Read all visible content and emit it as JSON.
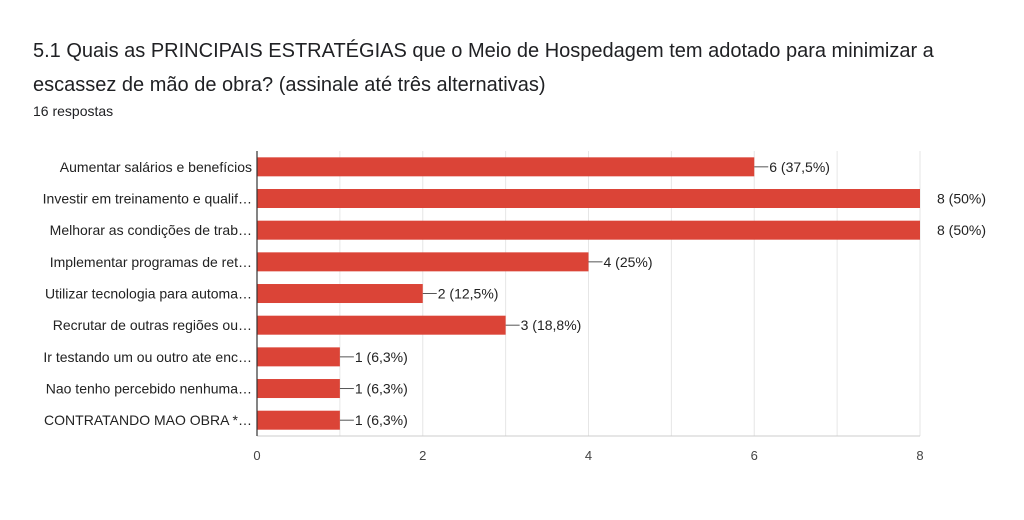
{
  "title": "5.1 Quais as PRINCIPAIS ESTRATÉGIAS que o Meio de Hospedagem tem adotado para minimizar a escassez de mão de obra?  (assinale até três alternativas)",
  "subtitle": "16 respostas",
  "chart_data": {
    "type": "bar",
    "orientation": "horizontal",
    "categories": [
      "Aumentar salários e benefícios",
      "Investir em treinamento e qualif…",
      "Melhorar as condições de trab…",
      "Implementar programas de ret…",
      "Utilizar tecnologia para automa…",
      "Recrutar de outras regiões ou…",
      "Ir testando um ou outro ate enc…",
      "Nao tenho percebido nenhuma…",
      "CONTRATANDO MAO OBRA *…"
    ],
    "values": [
      6,
      8,
      8,
      4,
      2,
      3,
      1,
      1,
      1
    ],
    "labels": [
      "6 (37,5%)",
      "8 (50%)",
      "8 (50%)",
      "4 (25%)",
      "2 (12,5%)",
      "3 (18,8%)",
      "1 (6,3%)",
      "1 (6,3%)",
      "1 (6,3%)"
    ],
    "xlim": [
      0,
      8
    ],
    "xticks": [
      0,
      2,
      4,
      6,
      8
    ],
    "bar_color": "#db4437",
    "grid": true
  }
}
